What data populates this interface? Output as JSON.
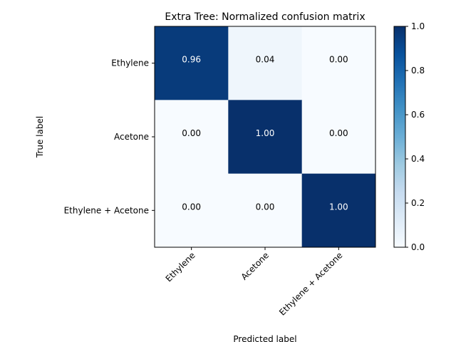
{
  "chart_data": {
    "type": "heatmap",
    "title": "Extra Tree: Normalized confusion matrix",
    "xlabel": "Predicted label",
    "ylabel": "True label",
    "x_categories": [
      "Ethylene",
      "Acetone",
      "Ethylene + Acetone"
    ],
    "y_categories": [
      "Ethylene",
      "Acetone",
      "Ethylene + Acetone"
    ],
    "values": [
      [
        0.96,
        0.04,
        0.0
      ],
      [
        0.0,
        1.0,
        0.0
      ],
      [
        0.0,
        0.0,
        1.0
      ]
    ],
    "value_labels": [
      [
        "0.96",
        "0.04",
        "0.00"
      ],
      [
        "0.00",
        "1.00",
        "0.00"
      ],
      [
        "0.00",
        "0.00",
        "1.00"
      ]
    ],
    "colormap": "Blues",
    "colorbar": {
      "range": [
        0.0,
        1.0
      ],
      "ticks": [
        0.0,
        0.2,
        0.4,
        0.6,
        0.8,
        1.0
      ],
      "tick_labels": [
        "0.0",
        "0.2",
        "0.4",
        "0.6",
        "0.8",
        "1.0"
      ]
    },
    "grid": false,
    "x_tick_rotation_deg": 45
  }
}
